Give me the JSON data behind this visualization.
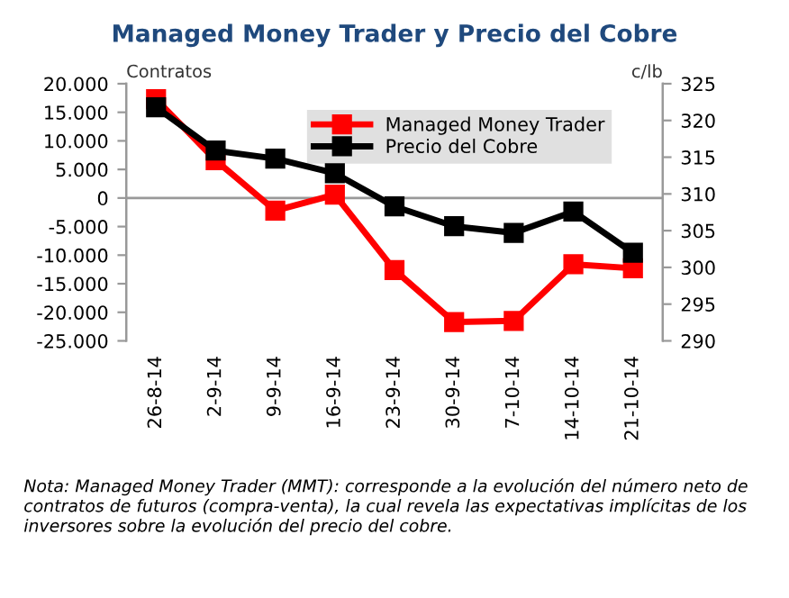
{
  "chart_data": {
    "type": "line",
    "title": "Managed Money Trader y Precio del Cobre",
    "categories": [
      "26-8-14",
      "2-9-14",
      "9-9-14",
      "16-9-14",
      "23-9-14",
      "30-9-14",
      "7-10-14",
      "14-10-14",
      "21-10-14"
    ],
    "series": [
      {
        "name": "Managed Money Trader",
        "color": "#ff0000",
        "values": [
          17300,
          6600,
          -2200,
          600,
          -12600,
          -21700,
          -21500,
          -11600,
          -12300
        ]
      },
      {
        "name": "Precio del Cobre",
        "color": "#000000",
        "axis": "y2",
        "values": [
          321.8,
          315.9,
          314.8,
          312.8,
          308.3,
          305.6,
          304.7,
          307.6,
          302.0
        ]
      }
    ],
    "ylim": [
      -25000,
      20000
    ],
    "yticks": [
      {
        "value": -25000,
        "label": "-25.000"
      },
      {
        "value": -20000,
        "label": "-20.000"
      },
      {
        "value": -15000,
        "label": "-15.000"
      },
      {
        "value": -10000,
        "label": "-10.000"
      },
      {
        "value": -5000,
        "label": "-5.000"
      },
      0,
      {
        "value": 5000,
        "label": "5.000"
      },
      {
        "value": 10000,
        "label": "10.000"
      },
      {
        "value": 15000,
        "label": "15.000"
      },
      {
        "value": 20000,
        "label": "20.000"
      }
    ],
    "y2lim": [
      290,
      325
    ],
    "y2ticks": [
      290,
      295,
      300,
      305,
      310,
      315,
      320,
      325
    ],
    "ylabel": "Contratos",
    "y2label": "c/lb",
    "ref_lines": [
      {
        "axis": "y",
        "value": 0,
        "color": "#999999",
        "line_style": "solid"
      }
    ],
    "marker": "square",
    "line_style": "solid",
    "grid": false,
    "legend": "top right",
    "annotations": [
      "Nota: Managed Money Trader (MMT): corresponde a la evolución del número neto de contratos de futuros (compra-venta), la cual revela las expectativas implícitas de los inversores sobre la evolución del precio del cobre."
    ]
  }
}
